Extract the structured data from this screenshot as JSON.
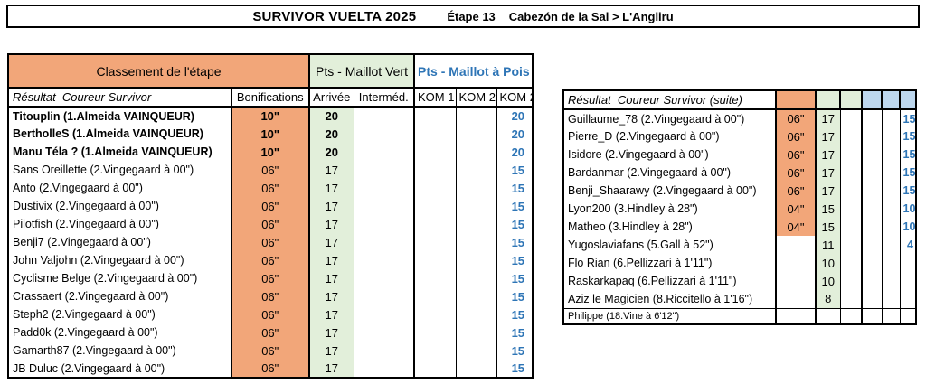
{
  "banner": {
    "title": "SURVIVOR VUELTA 2025",
    "stage": "Étape 13",
    "route": "Cabezón de la Sal > L'Angliru"
  },
  "colors": {
    "salmon": "#F2A679",
    "green": "#E2EFDA",
    "bluecell": "#BDD7EE",
    "bluetext": "#2E75B6"
  },
  "left_table": {
    "group_headers": {
      "classement": "Classement de l'étape",
      "maillot_vert": "Pts - Maillot Vert",
      "maillot_pois": "Pts - Maillot à Pois"
    },
    "column_headers": {
      "result": "Résultat  Coureur Survivor",
      "bonifications": "Bonifications",
      "arrivee": "Arrivée",
      "intermediaire": "Interméd.",
      "kom1": "KOM 1",
      "kom2": "KOM 2",
      "kom2b": "KOM 2"
    },
    "rows": [
      {
        "name": "Titouplin (1.Almeida VAINQUEUR)",
        "winner": true,
        "bonif": "10\"",
        "arrivee": "20",
        "intermed": "",
        "kom1": "",
        "kom2": "",
        "kom3": "20"
      },
      {
        "name": "BertholleS (1.Almeida VAINQUEUR)",
        "winner": true,
        "bonif": "10\"",
        "arrivee": "20",
        "intermed": "",
        "kom1": "",
        "kom2": "",
        "kom3": "20"
      },
      {
        "name": "Manu Téla ? (1.Almeida VAINQUEUR)",
        "winner": true,
        "bonif": "10\"",
        "arrivee": "20",
        "intermed": "",
        "kom1": "",
        "kom2": "",
        "kom3": "20"
      },
      {
        "name": "Sans Oreillette (2.Vingegaard à 00\")",
        "winner": false,
        "bonif": "06\"",
        "arrivee": "17",
        "intermed": "",
        "kom1": "",
        "kom2": "",
        "kom3": "15"
      },
      {
        "name": "Anto (2.Vingegaard à 00\")",
        "winner": false,
        "bonif": "06\"",
        "arrivee": "17",
        "intermed": "",
        "kom1": "",
        "kom2": "",
        "kom3": "15"
      },
      {
        "name": "Dustivix (2.Vingegaard à 00\")",
        "winner": false,
        "bonif": "06\"",
        "arrivee": "17",
        "intermed": "",
        "kom1": "",
        "kom2": "",
        "kom3": "15"
      },
      {
        "name": "Pilotfish (2.Vingegaard à 00\")",
        "winner": false,
        "bonif": "06\"",
        "arrivee": "17",
        "intermed": "",
        "kom1": "",
        "kom2": "",
        "kom3": "15"
      },
      {
        "name": "Benji7 (2.Vingegaard à 00\")",
        "winner": false,
        "bonif": "06\"",
        "arrivee": "17",
        "intermed": "",
        "kom1": "",
        "kom2": "",
        "kom3": "15"
      },
      {
        "name": "John Valjohn (2.Vingegaard à 00\")",
        "winner": false,
        "bonif": "06\"",
        "arrivee": "17",
        "intermed": "",
        "kom1": "",
        "kom2": "",
        "kom3": "15"
      },
      {
        "name": "Cyclisme Belge (2.Vingegaard à 00\")",
        "winner": false,
        "bonif": "06\"",
        "arrivee": "17",
        "intermed": "",
        "kom1": "",
        "kom2": "",
        "kom3": "15"
      },
      {
        "name": "Crassaert (2.Vingegaard à 00\")",
        "winner": false,
        "bonif": "06\"",
        "arrivee": "17",
        "intermed": "",
        "kom1": "",
        "kom2": "",
        "kom3": "15"
      },
      {
        "name": "Steph2 (2.Vingegaard à 00\")",
        "winner": false,
        "bonif": "06\"",
        "arrivee": "17",
        "intermed": "",
        "kom1": "",
        "kom2": "",
        "kom3": "15"
      },
      {
        "name": "Padd0k (2.Vingegaard à 00\")",
        "winner": false,
        "bonif": "06\"",
        "arrivee": "17",
        "intermed": "",
        "kom1": "",
        "kom2": "",
        "kom3": "15"
      },
      {
        "name": "Gamarth87 (2.Vingegaard à 00\")",
        "winner": false,
        "bonif": "06\"",
        "arrivee": "17",
        "intermed": "",
        "kom1": "",
        "kom2": "",
        "kom3": "15"
      },
      {
        "name": "JB Duluc (2.Vingegaard à 00\")",
        "winner": false,
        "bonif": "06\"",
        "arrivee": "17",
        "intermed": "",
        "kom1": "",
        "kom2": "",
        "kom3": "15"
      }
    ]
  },
  "right_table": {
    "header": "Résultat  Coureur Survivor (suite)",
    "rows": [
      {
        "name": "Guillaume_78 (2.Vingegaard à 00\")",
        "bonif": "06\"",
        "arrivee": "17",
        "intermed": "",
        "kom1": "",
        "kom2": "",
        "kom3": "15"
      },
      {
        "name": "Pierre_D (2.Vingegaard à 00\")",
        "bonif": "06\"",
        "arrivee": "17",
        "intermed": "",
        "kom1": "",
        "kom2": "",
        "kom3": "15"
      },
      {
        "name": "Isidore (2.Vingegaard à 00\")",
        "bonif": "06\"",
        "arrivee": "17",
        "intermed": "",
        "kom1": "",
        "kom2": "",
        "kom3": "15"
      },
      {
        "name": "Bardanmar (2.Vingegaard à 00\")",
        "bonif": "06\"",
        "arrivee": "17",
        "intermed": "",
        "kom1": "",
        "kom2": "",
        "kom3": "15"
      },
      {
        "name": "Benji_Shaarawy (2.Vingegaard à 00\")",
        "bonif": "06\"",
        "arrivee": "17",
        "intermed": "",
        "kom1": "",
        "kom2": "",
        "kom3": "15"
      },
      {
        "name": "Lyon200 (3.Hindley à 28\")",
        "bonif": "04\"",
        "arrivee": "15",
        "intermed": "",
        "kom1": "",
        "kom2": "",
        "kom3": "10"
      },
      {
        "name": "Matheo (3.Hindley à 28\")",
        "bonif": "04\"",
        "arrivee": "15",
        "intermed": "",
        "kom1": "",
        "kom2": "",
        "kom3": "10"
      },
      {
        "name": "Yugoslaviafans (5.Gall à 52\")",
        "bonif": "",
        "arrivee": "11",
        "intermed": "",
        "kom1": "",
        "kom2": "",
        "kom3": "4"
      },
      {
        "name": "Flo Rian (6.Pellizzari à 1'11\")",
        "bonif": "",
        "arrivee": "10",
        "intermed": "",
        "kom1": "",
        "kom2": "",
        "kom3": ""
      },
      {
        "name": "Raskarkapaq (6.Pellizzari à 1'11\")",
        "bonif": "",
        "arrivee": "10",
        "intermed": "",
        "kom1": "",
        "kom2": "",
        "kom3": ""
      },
      {
        "name": "Aziz le Magicien (8.Riccitello à 1'16\")",
        "bonif": "",
        "arrivee": "8",
        "intermed": "",
        "kom1": "",
        "kom2": "",
        "kom3": ""
      },
      {
        "name": "Philippe (18.Vine à 6'12\")",
        "note": true,
        "bonif": "",
        "arrivee": "",
        "intermed": "",
        "kom1": "",
        "kom2": "",
        "kom3": ""
      }
    ]
  }
}
